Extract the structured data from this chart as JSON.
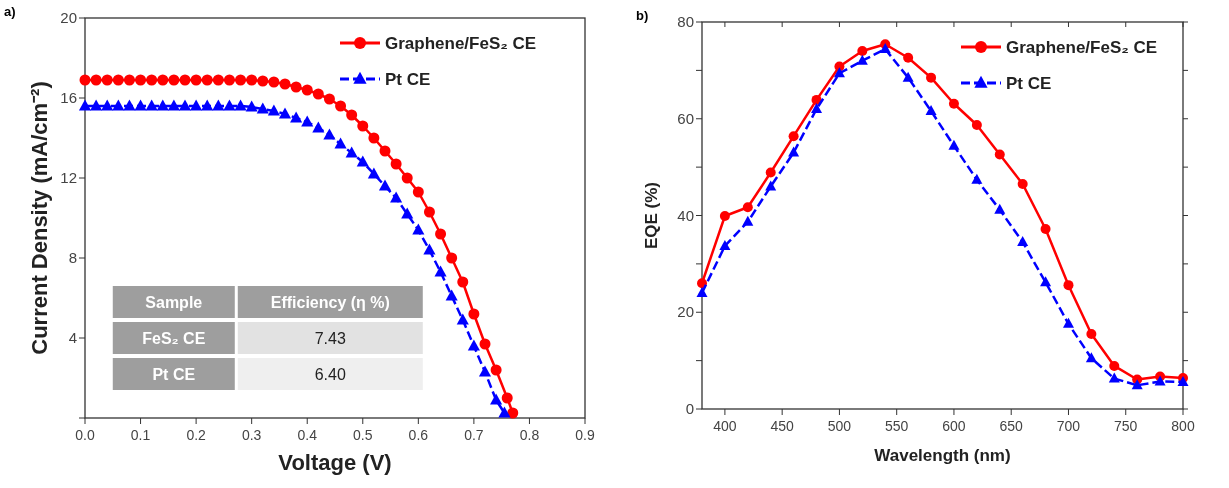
{
  "chart_data": [
    {
      "type": "line",
      "title": "a)",
      "xlabel": "Voltage (V)",
      "ylabel": "Current Density (mA/cm⁻²)",
      "xlim": [
        0,
        0.9
      ],
      "ylim": [
        0,
        20
      ],
      "xticks": [
        {
          "value": 0,
          "label": "0.0"
        },
        0.1,
        0.2,
        0.3,
        0.4,
        0.5,
        0.6,
        0.7,
        0.8,
        0.9
      ],
      "yticks": [
        {
          "value": 0,
          "label": null
        },
        4,
        8,
        12,
        16,
        20
      ],
      "legend": "top right",
      "annotations": [
        "Sample",
        "Efficiency (η %)",
        "FeS₂ CE",
        "7.43",
        "Pt CE",
        "6.40"
      ],
      "series": [
        {
          "name": "Graphene/FeS₂ CE",
          "color": "#ff0000",
          "marker": "circle",
          "line_style": "solid",
          "x": [
            0,
            0.02,
            0.04,
            0.06,
            0.08,
            0.1,
            0.12,
            0.14,
            0.16,
            0.18,
            0.2,
            0.22,
            0.24,
            0.26,
            0.28,
            0.3,
            0.32,
            0.34,
            0.36,
            0.38,
            0.4,
            0.42,
            0.44,
            0.46,
            0.48,
            0.5,
            0.52,
            0.54,
            0.56,
            0.58,
            0.6,
            0.62,
            0.64,
            0.66,
            0.68,
            0.7,
            0.72,
            0.74,
            0.76,
            0.77
          ],
          "values": [
            16.9,
            16.9,
            16.9,
            16.9,
            16.9,
            16.9,
            16.9,
            16.9,
            16.9,
            16.9,
            16.9,
            16.9,
            16.9,
            16.9,
            16.9,
            16.9,
            16.85,
            16.8,
            16.7,
            16.55,
            16.4,
            16.2,
            15.95,
            15.6,
            15.15,
            14.6,
            14.0,
            13.35,
            12.7,
            12.0,
            11.3,
            10.3,
            9.2,
            8.0,
            6.8,
            5.2,
            3.7,
            2.4,
            1.0,
            0.25
          ]
        },
        {
          "name": "Pt CE",
          "color": "#0000ff",
          "marker": "triangle",
          "line_style": "dashed",
          "x": [
            0,
            0.02,
            0.04,
            0.06,
            0.08,
            0.1,
            0.12,
            0.14,
            0.16,
            0.18,
            0.2,
            0.22,
            0.24,
            0.26,
            0.28,
            0.3,
            0.32,
            0.34,
            0.36,
            0.38,
            0.4,
            0.42,
            0.44,
            0.46,
            0.48,
            0.5,
            0.52,
            0.54,
            0.56,
            0.58,
            0.6,
            0.62,
            0.64,
            0.66,
            0.68,
            0.7,
            0.72,
            0.74,
            0.755
          ],
          "values": [
            15.6,
            15.6,
            15.6,
            15.6,
            15.6,
            15.6,
            15.6,
            15.6,
            15.6,
            15.6,
            15.6,
            15.6,
            15.6,
            15.6,
            15.6,
            15.55,
            15.45,
            15.35,
            15.2,
            15.0,
            14.8,
            14.5,
            14.15,
            13.7,
            13.25,
            12.8,
            12.2,
            11.6,
            11.0,
            10.2,
            9.4,
            8.4,
            7.3,
            6.1,
            4.9,
            3.6,
            2.3,
            0.9,
            0.25
          ]
        }
      ]
    },
    {
      "type": "line",
      "title": "b)",
      "xlabel": "Wavelength (nm)",
      "ylabel": "EQE (%)",
      "xlim": [
        380,
        800
      ],
      "ylim": [
        0,
        80
      ],
      "xticks": [
        400,
        450,
        500,
        550,
        600,
        650,
        700,
        750,
        800
      ],
      "yticks": [
        0,
        {
          "value": 10,
          "label": null
        },
        20,
        {
          "value": 30,
          "label": null
        },
        40,
        {
          "value": 50,
          "label": null
        },
        60,
        {
          "value": 70,
          "label": null
        },
        80
      ],
      "legend": "top right",
      "x": [
        380,
        400,
        420,
        440,
        460,
        480,
        500,
        520,
        540,
        560,
        580,
        600,
        620,
        640,
        660,
        680,
        700,
        720,
        740,
        760,
        780,
        800
      ],
      "series": [
        {
          "name": "Graphene/FeS₂ CE",
          "color": "#ff0000",
          "marker": "circle",
          "line_style": "solid",
          "values": [
            26,
            39.9,
            41.7,
            48.9,
            56.4,
            63.9,
            70.8,
            74.0,
            75.4,
            72.6,
            68.5,
            63.1,
            58.7,
            52.6,
            46.5,
            37.2,
            25.6,
            15.5,
            8.9,
            6.1,
            6.7,
            6.4
          ]
        },
        {
          "name": "Pt CE",
          "color": "#0000ff",
          "marker": "triangle",
          "line_style": "dashed",
          "values": [
            24.0,
            33.7,
            38.7,
            46.0,
            53.0,
            62.0,
            69.4,
            72.0,
            74.4,
            68.5,
            61.6,
            54.4,
            47.4,
            41.2,
            34.5,
            26.2,
            17.6,
            10.5,
            6.3,
            4.9,
            5.7,
            5.6
          ]
        }
      ]
    }
  ]
}
